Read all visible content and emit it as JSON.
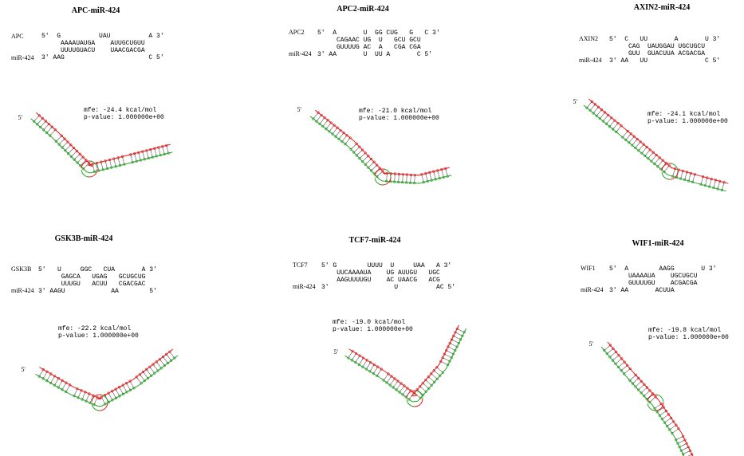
{
  "panels": [
    {
      "title": "APC-miR-424",
      "gene": "APC",
      "mirna": "miR-424",
      "alignment": [
        "5'  G          UAU          A 3'",
        "     AAAAUAUGA    AUUGCUGUU",
        "     UUUUGUACU    UAACGACGA",
        "3' AAG                      C 5'"
      ],
      "five_prime": "5'",
      "mfe": "mfe: -24.4 kcal/mol",
      "pvalue": "p-value: 1.000000e+00"
    },
    {
      "title": "APC2-miR-424",
      "gene": "APC2",
      "mirna": "miR-424",
      "alignment": [
        "5'  A       U  GG CUG   G   C 3'",
        "     CAGAAC UG  U   GCU GCU",
        "     GUUUUG AC  A   CGA CGA",
        "3' AA       U  UU A       C 5'"
      ],
      "five_prime": "5'",
      "mfe": "mfe: -21.0 kcal/mol",
      "pvalue": "p-value: 1.000000e+00"
    },
    {
      "title": "AXIN2-miR-424",
      "gene": "AXIN2",
      "mirna": "miR-424",
      "alignment": [
        "5'  C   UU       A       U 3'",
        "     CAG  UAUGGAU UGCUGCU",
        "     GUU  GUACUUA ACGACGA",
        "3' AA   UU               C 5'"
      ],
      "five_prime": "5'",
      "mfe": "mfe: -24.1 kcal/mol",
      "pvalue": "p-value: 1.000000e+00"
    },
    {
      "title": "GSK3B-miR-424",
      "gene": "GSK3B",
      "mirna": "miR-424",
      "alignment": [
        "5'   U     GGC   CUA       A 3'",
        "      GAGCA   UGAG   GCUGCUG",
        "      UUUGU   ACUU   CGACGAC",
        "3' AAGU            AA        5'"
      ],
      "five_prime": "5'",
      "mfe": "mfe: -22.2 kcal/mol",
      "pvalue": "p-value: 1.000000e+00"
    },
    {
      "title": "TCF7-miR-424",
      "gene": "TCF7",
      "mirna": "miR-424",
      "alignment": [
        "5' G        UUUU  U     UAA   A 3'",
        "    UUCAAAAUA    UG AUUGU   UGC",
        "    AAGUUUUGU    AC UAACG   ACG",
        "3'                 U          AC 5'"
      ],
      "five_prime": "5'",
      "mfe": "mfe: -19.0 kcal/mol",
      "pvalue": "p-value: 1.000000e+00"
    },
    {
      "title": "WIF1-miR-424",
      "gene": "WIF1",
      "mirna": "miR-424",
      "alignment": [
        "5'  A        AAGG       U 3'",
        "     UAAAAUA    UGCUGCU",
        "     GUUUUGU    ACGACGA",
        "3' AA       ACUUA"
      ],
      "five_prime": "5'",
      "mfe": "mfe: -19.8 kcal/mol",
      "pvalue": "p-value: 1.000000e+00"
    }
  ]
}
